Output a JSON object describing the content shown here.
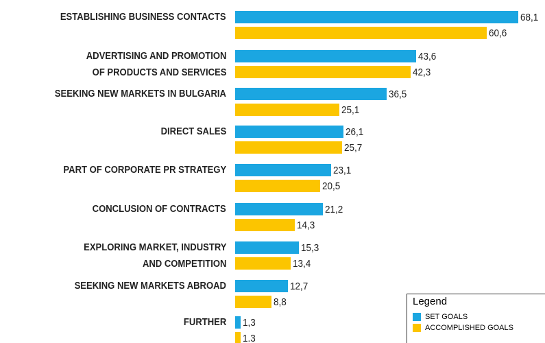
{
  "chart_data": {
    "type": "bar",
    "orientation": "horizontal",
    "categories": [
      "ESTABLISHING BUSINESS CONTACTS",
      "ADVERTISING AND PROMOTION\nOF PRODUCTS AND SERVICES",
      "SEEKING NEW MARKETS IN BULGARIA",
      "DIRECT SALES",
      "PART OF CORPORATE PR STRATEGY",
      "CONCLUSION OF CONTRACTS",
      "EXPLORING MARKET, INDUSTRY\nAND COMPETITION",
      "SEEKING NEW MARKETS ABROAD",
      "FURTHER"
    ],
    "series": [
      {
        "name": "SET GOALS",
        "color": "#1ba6e1",
        "values": [
          68.1,
          43.6,
          36.5,
          26.1,
          23.1,
          21.2,
          15.3,
          12.7,
          1.3
        ],
        "value_labels": [
          "68,1",
          "43,6",
          "36,5",
          "26,1",
          "23,1",
          "21,2",
          "15,3",
          "12,7",
          "1,3"
        ]
      },
      {
        "name": "ACCOMPLISHED GOALS",
        "color": "#fcc500",
        "values": [
          60.6,
          42.3,
          25.1,
          25.7,
          20.5,
          14.3,
          13.4,
          8.8,
          1.3
        ],
        "value_labels": [
          "60,6",
          "42,3",
          "25,1",
          "25,7",
          "20,5",
          "14,3",
          "13,4",
          "8,8",
          "1.3"
        ]
      }
    ],
    "legend": {
      "title": "Legend",
      "position": "lower right"
    }
  }
}
